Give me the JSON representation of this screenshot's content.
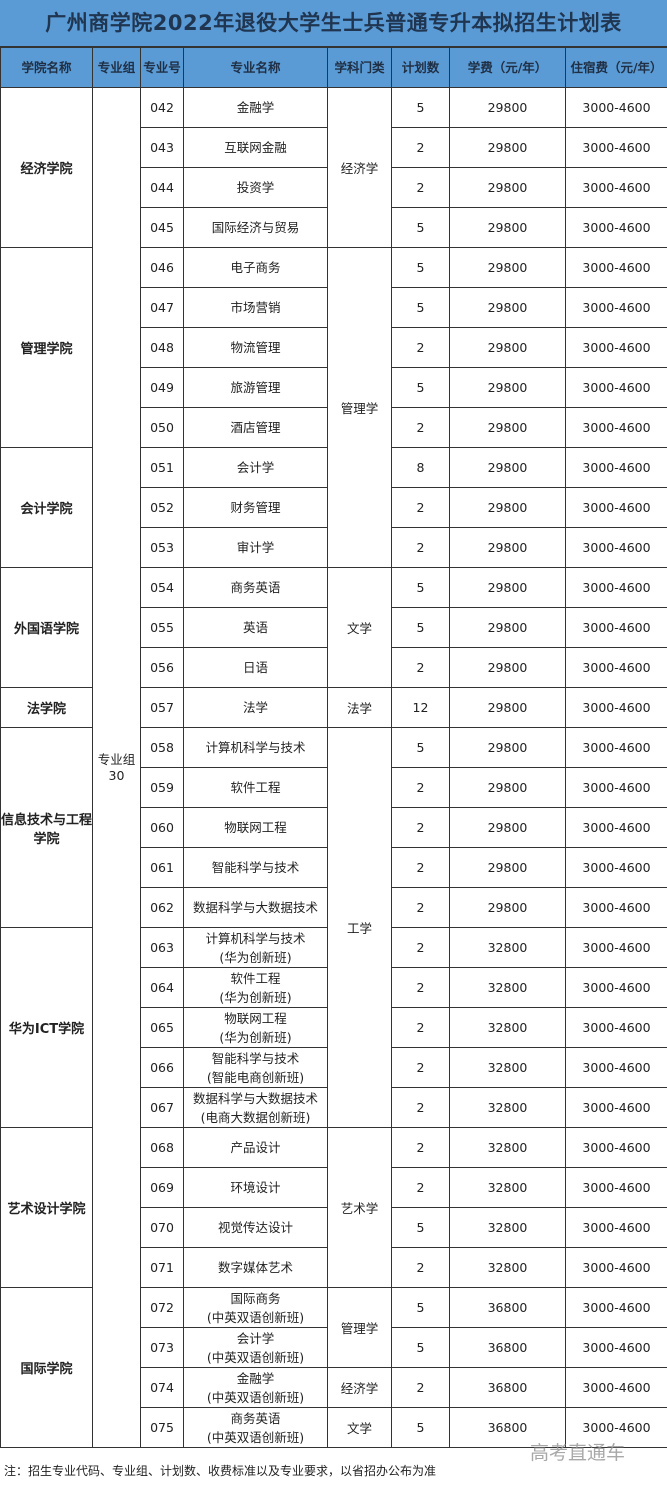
{
  "title": "广州商学院2022年退役大学生士兵普通专升本拟招生计划表",
  "headers": [
    "学院名称",
    "专业组",
    "专业号",
    "专业名称",
    "学科门类",
    "计划数",
    "学费（元/年）",
    "住宿费（元/年）"
  ],
  "group": "专业组30",
  "colleges": [
    {
      "name": "经济学院",
      "span": 4
    },
    {
      "name": "管理学院",
      "span": 5
    },
    {
      "name": "会计学院",
      "span": 3
    },
    {
      "name": "外国语学院",
      "span": 3
    },
    {
      "name": "法学院",
      "span": 1
    },
    {
      "name": "信息技术与工程学院",
      "span": 5
    },
    {
      "name": "华为ICT学院",
      "span": 5
    },
    {
      "name": "艺术设计学院",
      "span": 4
    },
    {
      "name": "国际学院",
      "span": 4
    }
  ],
  "categories": [
    {
      "name": "经济学",
      "span": 4
    },
    {
      "name": "管理学",
      "span": 8
    },
    {
      "name": "文学",
      "span": 3
    },
    {
      "name": "法学",
      "span": 1
    },
    {
      "name": "工学",
      "span": 10
    },
    {
      "name": "艺术学",
      "span": 4
    },
    {
      "name": "管理学",
      "span": 2
    },
    {
      "name": "经济学",
      "span": 1
    },
    {
      "name": "文学",
      "span": 1
    }
  ],
  "rows": [
    [
      "042",
      "金融学",
      "",
      "5",
      "29800",
      "3000-4600"
    ],
    [
      "043",
      "互联网金融",
      "",
      "2",
      "29800",
      "3000-4600"
    ],
    [
      "044",
      "投资学",
      "",
      "2",
      "29800",
      "3000-4600"
    ],
    [
      "045",
      "国际经济与贸易",
      "",
      "5",
      "29800",
      "3000-4600"
    ],
    [
      "046",
      "电子商务",
      "",
      "5",
      "29800",
      "3000-4600"
    ],
    [
      "047",
      "市场营销",
      "",
      "5",
      "29800",
      "3000-4600"
    ],
    [
      "048",
      "物流管理",
      "",
      "2",
      "29800",
      "3000-4600"
    ],
    [
      "049",
      "旅游管理",
      "",
      "5",
      "29800",
      "3000-4600"
    ],
    [
      "050",
      "酒店管理",
      "",
      "2",
      "29800",
      "3000-4600"
    ],
    [
      "051",
      "会计学",
      "",
      "8",
      "29800",
      "3000-4600"
    ],
    [
      "052",
      "财务管理",
      "",
      "2",
      "29800",
      "3000-4600"
    ],
    [
      "053",
      "审计学",
      "",
      "2",
      "29800",
      "3000-4600"
    ],
    [
      "054",
      "商务英语",
      "",
      "5",
      "29800",
      "3000-4600"
    ],
    [
      "055",
      "英语",
      "",
      "5",
      "29800",
      "3000-4600"
    ],
    [
      "056",
      "日语",
      "",
      "2",
      "29800",
      "3000-4600"
    ],
    [
      "057",
      "法学",
      "",
      "12",
      "29800",
      "3000-4600"
    ],
    [
      "058",
      "计算机科学与技术",
      "",
      "5",
      "29800",
      "3000-4600"
    ],
    [
      "059",
      "软件工程",
      "",
      "2",
      "29800",
      "3000-4600"
    ],
    [
      "060",
      "物联网工程",
      "",
      "2",
      "29800",
      "3000-4600"
    ],
    [
      "061",
      "智能科学与技术",
      "",
      "2",
      "29800",
      "3000-4600"
    ],
    [
      "062",
      "数据科学与大数据技术",
      "",
      "2",
      "29800",
      "3000-4600"
    ],
    [
      "063",
      "计算机科学与技术",
      "(华为创新班)",
      "2",
      "32800",
      "3000-4600"
    ],
    [
      "064",
      "软件工程",
      "(华为创新班)",
      "2",
      "32800",
      "3000-4600"
    ],
    [
      "065",
      "物联网工程",
      "(华为创新班)",
      "2",
      "32800",
      "3000-4600"
    ],
    [
      "066",
      "智能科学与技术",
      "(智能电商创新班)",
      "2",
      "32800",
      "3000-4600"
    ],
    [
      "067",
      "数据科学与大数据技术",
      "(电商大数据创新班)",
      "2",
      "32800",
      "3000-4600"
    ],
    [
      "068",
      "产品设计",
      "",
      "2",
      "32800",
      "3000-4600"
    ],
    [
      "069",
      "环境设计",
      "",
      "2",
      "32800",
      "3000-4600"
    ],
    [
      "070",
      "视觉传达设计",
      "",
      "5",
      "32800",
      "3000-4600"
    ],
    [
      "071",
      "数字媒体艺术",
      "",
      "2",
      "32800",
      "3000-4600"
    ],
    [
      "072",
      "国际商务",
      "(中英双语创新班)",
      "5",
      "36800",
      "3000-4600"
    ],
    [
      "073",
      "会计学",
      "(中英双语创新班)",
      "5",
      "36800",
      "3000-4600"
    ],
    [
      "074",
      "金融学",
      "(中英双语创新班)",
      "2",
      "36800",
      "3000-4600"
    ],
    [
      "075",
      "商务英语",
      "(中英双语创新班)",
      "5",
      "36800",
      "3000-4600"
    ]
  ],
  "note": "注：招生专业代码、专业组、计划数、收费标准以及专业要求，以省招办公布为准",
  "watermark": "高考直通车"
}
